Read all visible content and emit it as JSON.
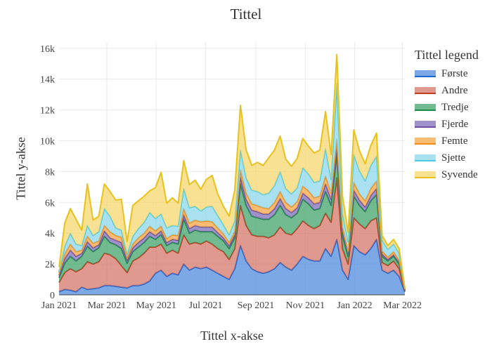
{
  "chart_data": {
    "type": "area",
    "title": "Tittel",
    "xlabel": "Tittel x-akse",
    "ylabel": "Tittel y-akse",
    "legend_title": "Tittel legend",
    "legend_position": "right",
    "stacked": true,
    "grid": true,
    "x_tick_labels": [
      "Jan 2021",
      "Mar 2021",
      "May 2021",
      "Jul 2021",
      "Sep 2021",
      "Nov 2021",
      "Jan 2022",
      "Mar 2022"
    ],
    "y_tick_labels": [
      "0",
      "2k",
      "4k",
      "6k",
      "8k",
      "10k",
      "12k",
      "14k",
      "16k"
    ],
    "ylim": [
      0,
      16400
    ],
    "x": [
      "2021-01-01",
      "2021-01-08",
      "2021-01-15",
      "2021-01-22",
      "2021-01-29",
      "2021-02-05",
      "2021-02-12",
      "2021-02-19",
      "2021-02-26",
      "2021-03-05",
      "2021-03-12",
      "2021-03-19",
      "2021-03-26",
      "2021-04-02",
      "2021-04-09",
      "2021-04-16",
      "2021-04-23",
      "2021-04-30",
      "2021-05-07",
      "2021-05-14",
      "2021-05-21",
      "2021-05-28",
      "2021-06-04",
      "2021-06-11",
      "2021-06-18",
      "2021-06-25",
      "2021-07-02",
      "2021-07-09",
      "2021-07-16",
      "2021-07-23",
      "2021-07-30",
      "2021-08-06",
      "2021-08-13",
      "2021-08-20",
      "2021-08-27",
      "2021-09-03",
      "2021-09-10",
      "2021-09-17",
      "2021-09-24",
      "2021-10-01",
      "2021-10-08",
      "2021-10-15",
      "2021-10-22",
      "2021-10-29",
      "2021-11-05",
      "2021-11-12",
      "2021-11-19",
      "2021-11-26",
      "2021-12-03",
      "2021-12-10",
      "2021-12-17",
      "2021-12-24",
      "2021-12-31",
      "2022-01-07",
      "2022-01-14",
      "2022-01-21",
      "2022-01-28",
      "2022-02-04",
      "2022-02-11",
      "2022-02-18",
      "2022-02-25",
      "2022-03-04"
    ],
    "series": [
      {
        "name": "Første",
        "line_color": "#1f66d1",
        "fill_color": "rgba(80,140,220,0.75)",
        "values": [
          200,
          350,
          300,
          200,
          500,
          350,
          400,
          450,
          600,
          600,
          550,
          500,
          450,
          600,
          600,
          700,
          900,
          1400,
          1600,
          1200,
          1400,
          1300,
          2000,
          1600,
          1800,
          1700,
          1800,
          1600,
          1400,
          1200,
          1000,
          1700,
          3200,
          2200,
          1700,
          1500,
          1400,
          1500,
          1700,
          2100,
          1800,
          1600,
          2000,
          2500,
          2300,
          2200,
          2200,
          3000,
          2500,
          3600,
          1600,
          1000,
          3200,
          2800,
          2600,
          3000,
          3600,
          1600,
          1400,
          1600,
          1200,
          200
        ]
      },
      {
        "name": "Andre",
        "line_color": "#c23b22",
        "fill_color": "rgba(210,110,95,0.7)",
        "values": [
          600,
          1100,
          1400,
          1300,
          1200,
          1800,
          1600,
          1700,
          2100,
          2000,
          1800,
          1400,
          1000,
          1600,
          1800,
          2000,
          2200,
          1700,
          1700,
          1500,
          1500,
          1400,
          1900,
          1700,
          1600,
          1600,
          1700,
          1700,
          1600,
          1600,
          1300,
          1300,
          2600,
          2300,
          2200,
          2300,
          2400,
          2200,
          2200,
          2300,
          2200,
          2300,
          2300,
          2300,
          2200,
          2100,
          2300,
          2300,
          2200,
          4000,
          1400,
          1000,
          1800,
          1800,
          1700,
          1800,
          1400,
          500,
          500,
          600,
          500,
          50
        ]
      },
      {
        "name": "Tredje",
        "line_color": "#1e8a47",
        "fill_color": "rgba(60,160,100,0.72)",
        "values": [
          300,
          600,
          800,
          700,
          800,
          1000,
          800,
          900,
          1100,
          800,
          900,
          1100,
          600,
          600,
          700,
          700,
          700,
          500,
          600,
          500,
          500,
          600,
          1000,
          700,
          800,
          800,
          600,
          800,
          800,
          700,
          700,
          700,
          1400,
          1300,
          1200,
          1200,
          1100,
          1200,
          1300,
          1400,
          1200,
          1100,
          1000,
          1400,
          1400,
          1200,
          1100,
          1400,
          1100,
          1500,
          800,
          500,
          1400,
          1200,
          1100,
          1300,
          1500,
          400,
          300,
          300,
          300,
          50
        ]
      },
      {
        "name": "Fjerde",
        "line_color": "#6a4f9e",
        "fill_color": "rgba(120,100,180,0.7)",
        "values": [
          150,
          300,
          400,
          300,
          200,
          300,
          250,
          200,
          350,
          300,
          300,
          400,
          200,
          250,
          300,
          300,
          300,
          250,
          250,
          200,
          200,
          250,
          300,
          300,
          300,
          300,
          300,
          300,
          250,
          200,
          200,
          200,
          450,
          400,
          400,
          400,
          350,
          350,
          400,
          450,
          400,
          350,
          350,
          400,
          400,
          400,
          400,
          500,
          400,
          500,
          300,
          150,
          400,
          350,
          300,
          350,
          400,
          150,
          100,
          100,
          100,
          20
        ]
      },
      {
        "name": "Femte",
        "line_color": "#f28c12",
        "fill_color": "rgba(245,165,70,0.75)",
        "values": [
          150,
          300,
          400,
          300,
          200,
          350,
          300,
          250,
          350,
          400,
          300,
          350,
          200,
          250,
          300,
          300,
          350,
          300,
          300,
          250,
          300,
          300,
          400,
          350,
          350,
          350,
          400,
          350,
          300,
          250,
          200,
          250,
          450,
          400,
          400,
          400,
          400,
          350,
          400,
          450,
          400,
          350,
          400,
          450,
          450,
          400,
          400,
          500,
          400,
          500,
          300,
          200,
          500,
          400,
          400,
          450,
          500,
          200,
          150,
          200,
          150,
          30
        ]
      },
      {
        "name": "Sjette",
        "line_color": "#4ccce0",
        "fill_color": "rgba(140,215,235,0.75)",
        "values": [
          100,
          500,
          700,
          500,
          300,
          700,
          500,
          600,
          1100,
          1000,
          500,
          450,
          200,
          500,
          600,
          700,
          900,
          800,
          800,
          700,
          600,
          600,
          1300,
          1000,
          900,
          700,
          900,
          1000,
          800,
          600,
          500,
          650,
          1300,
          1000,
          900,
          900,
          850,
          1000,
          1100,
          1300,
          900,
          850,
          900,
          1200,
          1100,
          1000,
          1000,
          1800,
          900,
          3600,
          900,
          600,
          1800,
          1500,
          1300,
          1500,
          1600,
          700,
          500,
          500,
          450,
          50
        ]
      },
      {
        "name": "Syvende",
        "line_color": "#e8c21c",
        "fill_color": "rgba(245,215,110,0.75)",
        "values": [
          300,
          1500,
          1600,
          1600,
          1000,
          2700,
          1000,
          1000,
          1600,
          1600,
          1800,
          2000,
          800,
          2000,
          1800,
          1700,
          1400,
          2000,
          2700,
          1600,
          1800,
          1500,
          1800,
          1500,
          1700,
          1400,
          1800,
          2000,
          1400,
          1200,
          1200,
          2000,
          2900,
          1800,
          1600,
          1900,
          1900,
          2300,
          2300,
          2300,
          1900,
          1800,
          1900,
          1900,
          1800,
          1900,
          2000,
          2400,
          1600,
          1900,
          1100,
          600,
          1600,
          1300,
          1100,
          1300,
          1500,
          300,
          250,
          300,
          300,
          30
        ]
      }
    ]
  }
}
